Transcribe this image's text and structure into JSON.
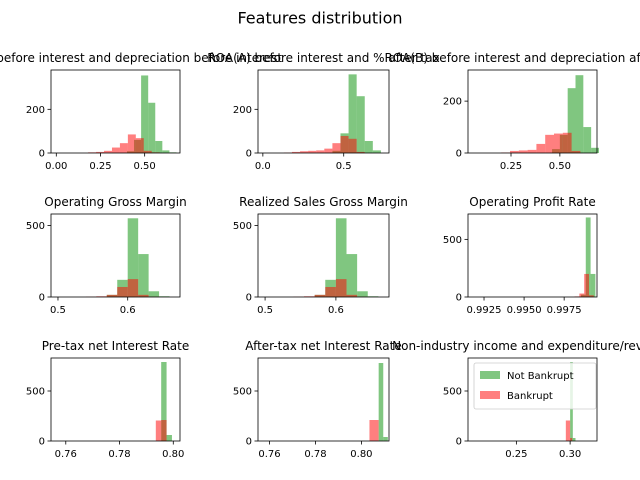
{
  "figure": {
    "suptitle": "Features distribution",
    "legend": {
      "placement": "upper-right of last panel",
      "entries": [
        {
          "label": "Not Bankrupt",
          "color": "#2ca02c",
          "opacity": 0.6
        },
        {
          "label": "Bankrupt",
          "color": "#ff0000",
          "opacity": 0.5
        }
      ]
    }
  },
  "chart_data": [
    {
      "type": "histogram",
      "title": "ROA(C) before interest and depreciation before interest",
      "xlim": [
        -0.03,
        0.7
      ],
      "ylim": [
        0,
        380
      ],
      "xticks": [
        {
          "v": 0.0,
          "label": "0.00"
        },
        {
          "v": 0.25,
          "label": "0.25"
        },
        {
          "v": 0.5,
          "label": "0.50"
        }
      ],
      "yticks": [
        {
          "v": 0,
          "label": "0"
        },
        {
          "v": 200,
          "label": "200"
        }
      ],
      "series": [
        {
          "name": "Not Bankrupt",
          "color": "#2ca02c",
          "opacity": 0.6,
          "bins": [
            [
              0.4,
              0.44,
              8
            ],
            [
              0.44,
              0.48,
              60
            ],
            [
              0.48,
              0.52,
              355
            ],
            [
              0.52,
              0.56,
              230
            ],
            [
              0.56,
              0.6,
              55
            ],
            [
              0.6,
              0.64,
              12
            ],
            [
              0.64,
              0.68,
              3
            ]
          ]
        },
        {
          "name": "Bankrupt",
          "color": "#ff0000",
          "opacity": 0.5,
          "bins": [
            [
              0.18,
              0.225,
              3
            ],
            [
              0.225,
              0.27,
              5
            ],
            [
              0.27,
              0.315,
              10
            ],
            [
              0.315,
              0.36,
              25
            ],
            [
              0.36,
              0.405,
              45
            ],
            [
              0.405,
              0.45,
              85
            ],
            [
              0.45,
              0.495,
              68
            ],
            [
              0.495,
              0.54,
              10
            ],
            [
              0.54,
              0.585,
              3
            ]
          ]
        }
      ]
    },
    {
      "type": "histogram",
      "title": "ROA(A) before interest and % after tax",
      "xlim": [
        -0.03,
        0.78
      ],
      "ylim": [
        0,
        380
      ],
      "xticks": [
        {
          "v": 0.0,
          "label": "0.0"
        },
        {
          "v": 0.5,
          "label": "0.5"
        }
      ],
      "yticks": [
        {
          "v": 0,
          "label": "0"
        },
        {
          "v": 200,
          "label": "200"
        }
      ],
      "series": [
        {
          "name": "Not Bankrupt",
          "color": "#2ca02c",
          "opacity": 0.6,
          "bins": [
            [
              0.43,
              0.48,
              10
            ],
            [
              0.48,
              0.53,
              90
            ],
            [
              0.53,
              0.58,
              360
            ],
            [
              0.58,
              0.63,
              260
            ],
            [
              0.63,
              0.68,
              55
            ],
            [
              0.68,
              0.73,
              12
            ]
          ]
        },
        {
          "name": "Bankrupt",
          "color": "#ff0000",
          "opacity": 0.5,
          "bins": [
            [
              0.13,
              0.18,
              2
            ],
            [
              0.18,
              0.23,
              5
            ],
            [
              0.23,
              0.28,
              8
            ],
            [
              0.28,
              0.33,
              10
            ],
            [
              0.33,
              0.38,
              12
            ],
            [
              0.38,
              0.43,
              20
            ],
            [
              0.43,
              0.48,
              45
            ],
            [
              0.48,
              0.53,
              78
            ],
            [
              0.53,
              0.58,
              65
            ],
            [
              0.58,
              0.63,
              5
            ]
          ]
        }
      ]
    },
    {
      "type": "histogram",
      "title": "ROA(B) before interest and depreciation after tax",
      "xlim": [
        0.03,
        0.69
      ],
      "ylim": [
        0,
        320
      ],
      "xticks": [
        {
          "v": 0.25,
          "label": "0.25"
        },
        {
          "v": 0.5,
          "label": "0.50"
        }
      ],
      "yticks": [
        {
          "v": 0,
          "label": "0"
        },
        {
          "v": 200,
          "label": "200"
        }
      ],
      "series": [
        {
          "name": "Not Bankrupt",
          "color": "#2ca02c",
          "opacity": 0.6,
          "bins": [
            [
              0.46,
              0.5,
              15
            ],
            [
              0.5,
              0.54,
              70
            ],
            [
              0.54,
              0.58,
              250
            ],
            [
              0.58,
              0.62,
              300
            ],
            [
              0.62,
              0.66,
              100
            ],
            [
              0.66,
              0.7,
              20
            ]
          ]
        },
        {
          "name": "Bankrupt",
          "color": "#ff0000",
          "opacity": 0.5,
          "bins": [
            [
              0.2,
              0.245,
              2
            ],
            [
              0.245,
              0.29,
              8
            ],
            [
              0.29,
              0.335,
              10
            ],
            [
              0.335,
              0.38,
              12
            ],
            [
              0.38,
              0.425,
              35
            ],
            [
              0.425,
              0.47,
              70
            ],
            [
              0.47,
              0.515,
              75
            ],
            [
              0.515,
              0.56,
              78
            ],
            [
              0.56,
              0.605,
              8
            ]
          ]
        }
      ]
    },
    {
      "type": "histogram",
      "title": "Operating Gross Margin",
      "xlim": [
        0.49,
        0.675
      ],
      "ylim": [
        0,
        580
      ],
      "xticks": [
        {
          "v": 0.5,
          "label": "0.5"
        },
        {
          "v": 0.6,
          "label": "0.6"
        }
      ],
      "yticks": [
        {
          "v": 0,
          "label": "0"
        },
        {
          "v": 500,
          "label": "500"
        }
      ],
      "series": [
        {
          "name": "Not Bankrupt",
          "color": "#2ca02c",
          "opacity": 0.6,
          "bins": [
            [
              0.57,
              0.585,
              15
            ],
            [
              0.585,
              0.6,
              120
            ],
            [
              0.6,
              0.615,
              550
            ],
            [
              0.615,
              0.63,
              300
            ],
            [
              0.63,
              0.645,
              40
            ],
            [
              0.645,
              0.66,
              5
            ]
          ]
        },
        {
          "name": "Bankrupt",
          "color": "#ff0000",
          "opacity": 0.5,
          "bins": [
            [
              0.54,
              0.555,
              2
            ],
            [
              0.555,
              0.57,
              5
            ],
            [
              0.57,
              0.585,
              15
            ],
            [
              0.585,
              0.6,
              70
            ],
            [
              0.6,
              0.615,
              125
            ],
            [
              0.615,
              0.63,
              15
            ],
            [
              0.63,
              0.645,
              2
            ]
          ]
        }
      ]
    },
    {
      "type": "histogram",
      "title": "Realized Sales Gross Margin",
      "xlim": [
        0.49,
        0.675
      ],
      "ylim": [
        0,
        580
      ],
      "xticks": [
        {
          "v": 0.5,
          "label": "0.5"
        },
        {
          "v": 0.6,
          "label": "0.6"
        }
      ],
      "yticks": [
        {
          "v": 0,
          "label": "0"
        },
        {
          "v": 500,
          "label": "500"
        }
      ],
      "series": [
        {
          "name": "Not Bankrupt",
          "color": "#2ca02c",
          "opacity": 0.6,
          "bins": [
            [
              0.57,
              0.585,
              15
            ],
            [
              0.585,
              0.6,
              120
            ],
            [
              0.6,
              0.615,
              550
            ],
            [
              0.615,
              0.63,
              300
            ],
            [
              0.63,
              0.645,
              40
            ],
            [
              0.645,
              0.66,
              5
            ]
          ]
        },
        {
          "name": "Bankrupt",
          "color": "#ff0000",
          "opacity": 0.5,
          "bins": [
            [
              0.54,
              0.555,
              2
            ],
            [
              0.555,
              0.57,
              5
            ],
            [
              0.57,
              0.585,
              15
            ],
            [
              0.585,
              0.6,
              70
            ],
            [
              0.6,
              0.615,
              125
            ],
            [
              0.615,
              0.63,
              15
            ],
            [
              0.63,
              0.645,
              2
            ]
          ]
        }
      ]
    },
    {
      "type": "histogram",
      "title": "Operating Profit Rate",
      "xlim": [
        0.9915,
        0.99955
      ],
      "ylim": [
        0,
        720
      ],
      "xticks": [
        {
          "v": 0.9925,
          "label": "0.9925"
        },
        {
          "v": 0.995,
          "label": "0.9950"
        },
        {
          "v": 0.9975,
          "label": "0.9975"
        }
      ],
      "yticks": [
        {
          "v": 0,
          "label": "0"
        },
        {
          "v": 500,
          "label": "500"
        }
      ],
      "series": [
        {
          "name": "Not Bankrupt",
          "color": "#2ca02c",
          "opacity": 0.6,
          "bins": [
            [
              0.99855,
              0.99885,
              20
            ],
            [
              0.99885,
              0.99915,
              690
            ],
            [
              0.99915,
              0.99945,
              200
            ]
          ]
        },
        {
          "name": "Bankrupt",
          "color": "#ff0000",
          "opacity": 0.5,
          "bins": [
            [
              0.99815,
              0.99845,
              5
            ],
            [
              0.99845,
              0.99875,
              30
            ],
            [
              0.99875,
              0.99905,
              200
            ],
            [
              0.99905,
              0.99935,
              15
            ]
          ]
        }
      ]
    },
    {
      "type": "histogram",
      "title": "Pre-tax net Interest Rate",
      "xlim": [
        0.7545,
        0.8025
      ],
      "ylim": [
        0,
        830
      ],
      "xticks": [
        {
          "v": 0.76,
          "label": "0.76"
        },
        {
          "v": 0.78,
          "label": "0.78"
        },
        {
          "v": 0.8,
          "label": "0.80"
        }
      ],
      "yticks": [
        {
          "v": 0,
          "label": "0"
        },
        {
          "v": 500,
          "label": "500"
        }
      ],
      "series": [
        {
          "name": "Not Bankrupt",
          "color": "#2ca02c",
          "opacity": 0.6,
          "bins": [
            [
              0.7955,
              0.7975,
              790
            ],
            [
              0.7975,
              0.7995,
              60
            ]
          ]
        },
        {
          "name": "Bankrupt",
          "color": "#ff0000",
          "opacity": 0.5,
          "bins": [
            [
              0.7935,
              0.7955,
              205
            ],
            [
              0.7955,
              0.7975,
              210
            ]
          ]
        }
      ]
    },
    {
      "type": "histogram",
      "title": "After-tax net Interest Rate",
      "xlim": [
        0.755,
        0.812
      ],
      "ylim": [
        0,
        830
      ],
      "xticks": [
        {
          "v": 0.76,
          "label": "0.76"
        },
        {
          "v": 0.78,
          "label": "0.78"
        },
        {
          "v": 0.8,
          "label": "0.80"
        }
      ],
      "yticks": [
        {
          "v": 0,
          "label": "0"
        },
        {
          "v": 500,
          "label": "500"
        }
      ],
      "series": [
        {
          "name": "Not Bankrupt",
          "color": "#2ca02c",
          "opacity": 0.6,
          "bins": [
            [
              0.8075,
              0.8095,
              780
            ],
            [
              0.8095,
              0.8115,
              40
            ]
          ]
        },
        {
          "name": "Bankrupt",
          "color": "#ff0000",
          "opacity": 0.5,
          "bins": [
            [
              0.8035,
              0.8075,
              210
            ]
          ]
        }
      ]
    },
    {
      "type": "histogram",
      "title": "Non-industry income and expenditure/revenue",
      "xlim": [
        0.205,
        0.325
      ],
      "ylim": [
        0,
        830
      ],
      "xticks": [
        {
          "v": 0.25,
          "label": "0.25"
        },
        {
          "v": 0.3,
          "label": "0.30"
        }
      ],
      "yticks": [
        {
          "v": 0,
          "label": "0"
        },
        {
          "v": 500,
          "label": "500"
        }
      ],
      "series": [
        {
          "name": "Not Bankrupt",
          "color": "#2ca02c",
          "opacity": 0.6,
          "bins": [
            [
              0.3,
              0.3025,
              790
            ],
            [
              0.3025,
              0.305,
              30
            ]
          ]
        },
        {
          "name": "Bankrupt",
          "color": "#ff0000",
          "opacity": 0.5,
          "bins": [
            [
              0.296,
              0.3,
              205
            ],
            [
              0.3,
              0.302,
              30
            ]
          ]
        }
      ]
    }
  ]
}
